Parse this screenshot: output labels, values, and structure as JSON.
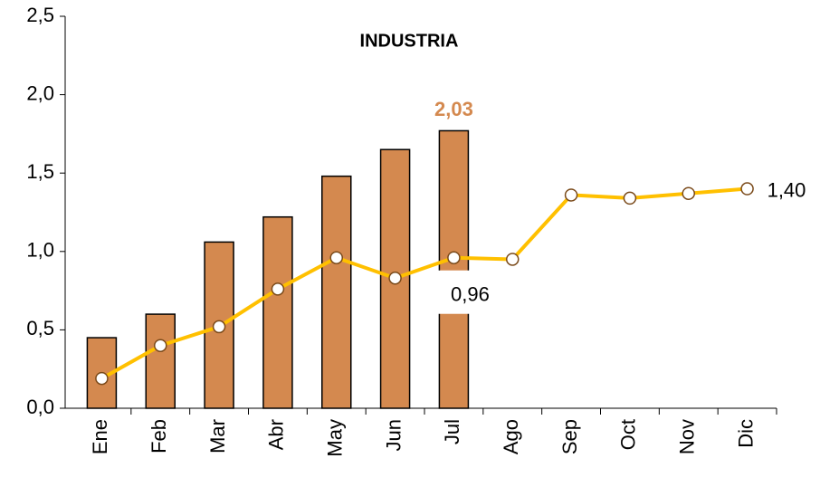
{
  "chart_data": {
    "type": "combo",
    "title": "INDUSTRIA",
    "categories": [
      "Ene",
      "Feb",
      "Mar",
      "Abr",
      "May",
      "Jun",
      "Jul",
      "Ago",
      "Sep",
      "Oct",
      "Nov",
      "Dic"
    ],
    "series": [
      {
        "type": "bar",
        "color": "#D4894F",
        "values": [
          0.45,
          0.6,
          1.06,
          1.22,
          1.48,
          1.65,
          1.77,
          null,
          null,
          null,
          null,
          null
        ]
      },
      {
        "type": "line",
        "color": "#FFC000",
        "values": [
          0.19,
          0.4,
          0.52,
          0.76,
          0.96,
          0.83,
          0.96,
          0.95,
          1.36,
          1.34,
          1.37,
          1.4
        ],
        "value_labels": [
          null,
          null,
          null,
          null,
          null,
          null,
          "0,96",
          null,
          null,
          null,
          null,
          "1,40"
        ]
      }
    ],
    "annotation": "2,03",
    "ylim": [
      0,
      2.5
    ],
    "yticks": [
      {
        "value": 0,
        "label": "0,0"
      },
      {
        "value": 0.5,
        "label": "0,5"
      },
      {
        "value": 1,
        "label": "1,0"
      },
      {
        "value": 1.5,
        "label": "1,5"
      },
      {
        "value": 2,
        "label": "2,0"
      },
      {
        "value": 2.5,
        "label": "2,5"
      }
    ],
    "grid": false
  }
}
